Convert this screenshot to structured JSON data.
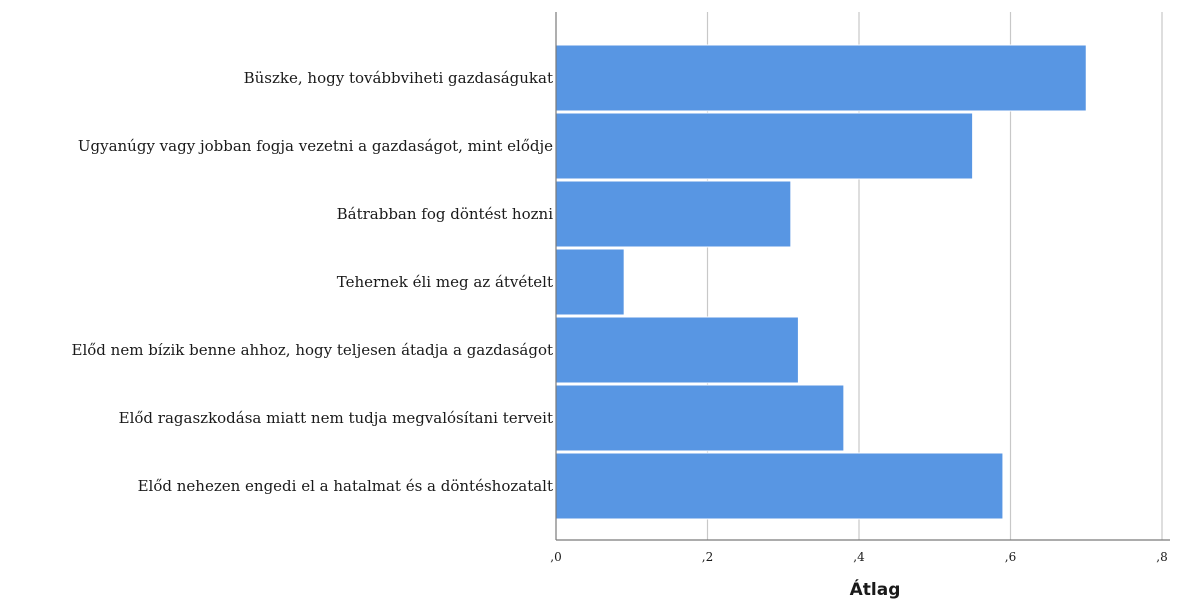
{
  "chart_data": {
    "type": "bar",
    "orientation": "horizontal",
    "categories": [
      "Büszke, hogy továbbviheti gazdaságukat",
      "Ugyanúgy vagy jobban fogja vezetni a gazdaságot, mint elődje",
      "Bátrabban fog döntést hozni",
      "Tehernek éli meg az átvételt",
      "Előd nem bízik benne ahhoz, hogy teljesen átadja a gazdaságot",
      "Előd ragaszkodása miatt nem tudja megvalósítani terveit",
      "Előd nehezen engedi el a hatalmat és a döntéshozatalt"
    ],
    "values": [
      0.7,
      0.55,
      0.31,
      0.09,
      0.32,
      0.38,
      0.59
    ],
    "xlim": [
      0,
      0.8
    ],
    "xticks": [
      0,
      0.2,
      0.4,
      0.6,
      0.8
    ],
    "xtick_labels": [
      ",0",
      ",2",
      ",4",
      ",6",
      ",8"
    ],
    "xlabel": "Átlag",
    "ylabel": "",
    "title": "",
    "grid": "vertical",
    "bar_color": "#5896E3"
  }
}
